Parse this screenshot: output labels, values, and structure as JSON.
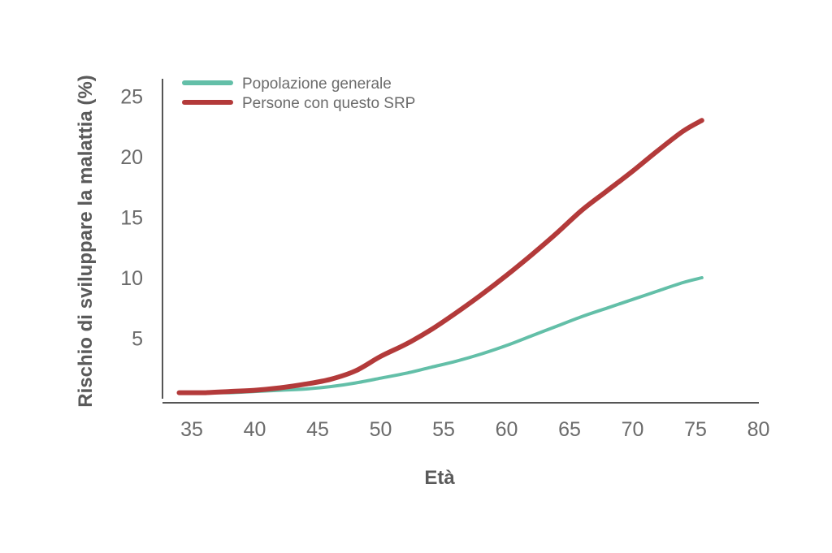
{
  "chart_data": {
    "type": "line",
    "title": "",
    "xlabel": "Età",
    "ylabel": "Rischio di sviluppare la malattia (%)",
    "xlim": [
      33,
      81
    ],
    "ylim": [
      0,
      26
    ],
    "x_ticks": [
      35,
      40,
      45,
      50,
      55,
      60,
      65,
      70,
      75,
      80
    ],
    "y_ticks": [
      5,
      10,
      15,
      20,
      25
    ],
    "grid": false,
    "legend_position": "top-left",
    "series": [
      {
        "name": "Popolazione generale",
        "color": "#63bfa8",
        "x": [
          34,
          36,
          38,
          40,
          42,
          44,
          46,
          48,
          50,
          52,
          54,
          56,
          58,
          60,
          62,
          64,
          66,
          68,
          70,
          72,
          74,
          75.5
        ],
        "y": [
          0.5,
          0.5,
          0.5,
          0.6,
          0.7,
          0.8,
          1.0,
          1.3,
          1.7,
          2.1,
          2.6,
          3.1,
          3.7,
          4.4,
          5.2,
          6.0,
          6.8,
          7.5,
          8.2,
          8.9,
          9.6,
          10.0
        ]
      },
      {
        "name": "Persone con questo SRP",
        "color": "#b33a3a",
        "x": [
          34,
          36,
          38,
          40,
          42,
          44,
          46,
          48,
          50,
          52,
          54,
          56,
          58,
          60,
          62,
          64,
          66,
          68,
          70,
          72,
          74,
          75.5
        ],
        "y": [
          0.5,
          0.5,
          0.6,
          0.7,
          0.9,
          1.2,
          1.6,
          2.3,
          3.5,
          4.5,
          5.7,
          7.1,
          8.6,
          10.2,
          11.9,
          13.7,
          15.6,
          17.2,
          18.8,
          20.5,
          22.1,
          23.0
        ]
      }
    ]
  }
}
